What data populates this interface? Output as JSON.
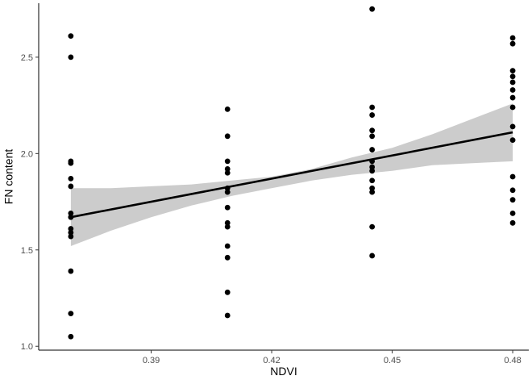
{
  "chart_data": {
    "type": "scatter",
    "xlabel": "NDVI",
    "ylabel": "FN content",
    "xlim": [
      0.362,
      0.484
    ],
    "ylim": [
      0.98,
      2.78
    ],
    "x_ticks": [
      0.39,
      0.42,
      0.45,
      0.48
    ],
    "x_tick_labels": [
      "0.39",
      "0.42",
      "0.45",
      "0.48"
    ],
    "y_ticks": [
      1.0,
      1.5,
      2.0,
      2.5
    ],
    "y_tick_labels": [
      "1.0",
      "1.5",
      "2.0",
      "2.5"
    ],
    "grid": false,
    "points": [
      {
        "x": 0.37,
        "y": 2.61
      },
      {
        "x": 0.37,
        "y": 2.5
      },
      {
        "x": 0.37,
        "y": 1.96
      },
      {
        "x": 0.37,
        "y": 1.95
      },
      {
        "x": 0.37,
        "y": 1.87
      },
      {
        "x": 0.37,
        "y": 1.83
      },
      {
        "x": 0.37,
        "y": 1.69
      },
      {
        "x": 0.37,
        "y": 1.67
      },
      {
        "x": 0.37,
        "y": 1.61
      },
      {
        "x": 0.37,
        "y": 1.59
      },
      {
        "x": 0.37,
        "y": 1.57
      },
      {
        "x": 0.37,
        "y": 1.39
      },
      {
        "x": 0.37,
        "y": 1.17
      },
      {
        "x": 0.37,
        "y": 1.05
      },
      {
        "x": 0.409,
        "y": 2.23
      },
      {
        "x": 0.409,
        "y": 2.09
      },
      {
        "x": 0.409,
        "y": 1.96
      },
      {
        "x": 0.409,
        "y": 1.92
      },
      {
        "x": 0.409,
        "y": 1.9
      },
      {
        "x": 0.409,
        "y": 1.82
      },
      {
        "x": 0.409,
        "y": 1.8
      },
      {
        "x": 0.409,
        "y": 1.72
      },
      {
        "x": 0.409,
        "y": 1.64
      },
      {
        "x": 0.409,
        "y": 1.62
      },
      {
        "x": 0.409,
        "y": 1.52
      },
      {
        "x": 0.409,
        "y": 1.46
      },
      {
        "x": 0.409,
        "y": 1.28
      },
      {
        "x": 0.409,
        "y": 1.16
      },
      {
        "x": 0.445,
        "y": 2.75
      },
      {
        "x": 0.445,
        "y": 2.24
      },
      {
        "x": 0.445,
        "y": 2.2
      },
      {
        "x": 0.445,
        "y": 2.12
      },
      {
        "x": 0.445,
        "y": 2.09
      },
      {
        "x": 0.445,
        "y": 2.02
      },
      {
        "x": 0.445,
        "y": 1.96
      },
      {
        "x": 0.445,
        "y": 1.93
      },
      {
        "x": 0.445,
        "y": 1.91
      },
      {
        "x": 0.445,
        "y": 1.86
      },
      {
        "x": 0.445,
        "y": 1.82
      },
      {
        "x": 0.445,
        "y": 1.8
      },
      {
        "x": 0.445,
        "y": 1.62
      },
      {
        "x": 0.445,
        "y": 1.47
      },
      {
        "x": 0.48,
        "y": 2.6
      },
      {
        "x": 0.48,
        "y": 2.57
      },
      {
        "x": 0.48,
        "y": 2.43
      },
      {
        "x": 0.48,
        "y": 2.4
      },
      {
        "x": 0.48,
        "y": 2.37
      },
      {
        "x": 0.48,
        "y": 2.33
      },
      {
        "x": 0.48,
        "y": 2.29
      },
      {
        "x": 0.48,
        "y": 2.24
      },
      {
        "x": 0.48,
        "y": 2.14
      },
      {
        "x": 0.48,
        "y": 2.07
      },
      {
        "x": 0.48,
        "y": 1.88
      },
      {
        "x": 0.48,
        "y": 1.81
      },
      {
        "x": 0.48,
        "y": 1.76
      },
      {
        "x": 0.48,
        "y": 1.69
      },
      {
        "x": 0.48,
        "y": 1.64
      }
    ],
    "fit_line": {
      "x": [
        0.37,
        0.48
      ],
      "y": [
        1.67,
        2.11
      ]
    },
    "confidence_band": {
      "x": [
        0.37,
        0.38,
        0.39,
        0.4,
        0.41,
        0.42,
        0.43,
        0.44,
        0.45,
        0.46,
        0.47,
        0.48
      ],
      "lower": [
        1.52,
        1.6,
        1.67,
        1.73,
        1.78,
        1.82,
        1.86,
        1.89,
        1.91,
        1.94,
        1.95,
        1.96
      ],
      "upper": [
        1.82,
        1.82,
        1.83,
        1.84,
        1.86,
        1.88,
        1.92,
        1.98,
        2.03,
        2.1,
        2.18,
        2.26
      ]
    },
    "colors": {
      "points": "#000000",
      "line": "#000000",
      "band": "#cccccc",
      "axis": "#000000"
    }
  }
}
